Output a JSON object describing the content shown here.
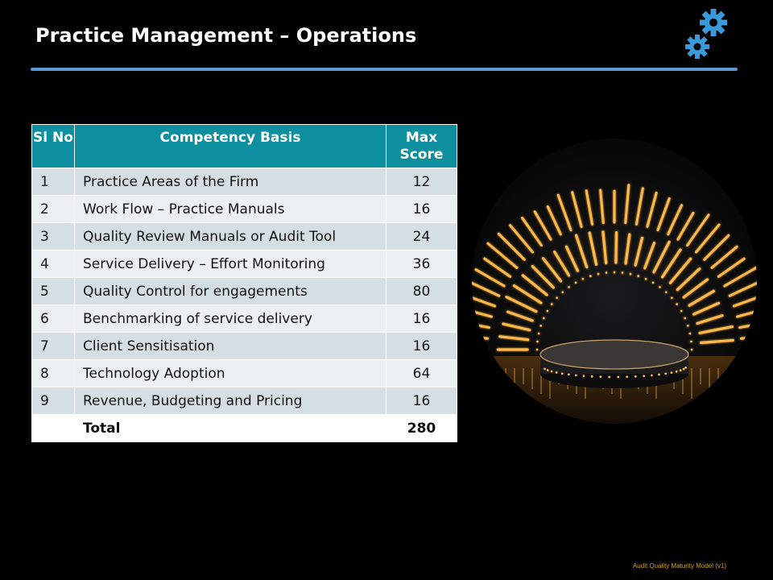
{
  "slide": {
    "title": "Practice Management – Operations",
    "footer": "Audit Quality Maturity Model (v1)"
  },
  "colors": {
    "title_rule": "#5b9bd5",
    "header_bg": "#0e8fa0",
    "row_odd": "#d5dfe3",
    "row_even": "#ebf0f2",
    "gear": "#3a9ad9",
    "glow": "#ffb84a",
    "footer_text": "#d4a21a"
  },
  "icons": {
    "gears": "gear-icon"
  },
  "table": {
    "headers": {
      "no": "Sl No",
      "basis": "Competency Basis",
      "score": "Max Score"
    },
    "rows": [
      {
        "no": "1",
        "basis": "Practice Areas of the Firm",
        "score": "12"
      },
      {
        "no": "2",
        "basis": "Work Flow – Practice Manuals",
        "score": "16"
      },
      {
        "no": "3",
        "basis": "Quality Review Manuals or Audit Tool",
        "score": "24"
      },
      {
        "no": "4",
        "basis": "Service Delivery – Effort Monitoring",
        "score": "36"
      },
      {
        "no": "5",
        "basis": "Quality Control for engagements",
        "score": "80"
      },
      {
        "no": "6",
        "basis": "Benchmarking of service delivery",
        "score": "16"
      },
      {
        "no": "7",
        "basis": "Client Sensitisation",
        "score": "16"
      },
      {
        "no": "8",
        "basis": "Technology Adoption",
        "score": "64"
      },
      {
        "no": "9",
        "basis": "Revenue, Budgeting and Pricing",
        "score": "16"
      }
    ],
    "total": {
      "no": "",
      "basis": "Total",
      "score": "280"
    }
  }
}
